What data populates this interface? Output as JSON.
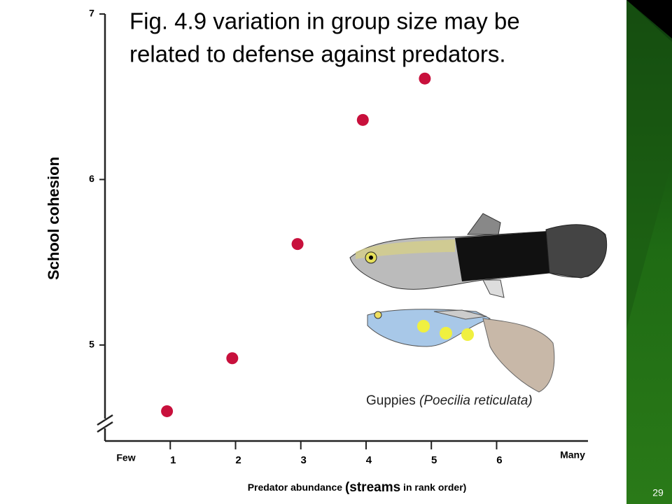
{
  "chart_data": {
    "type": "scatter",
    "title": [
      "Fig. 4.9 variation in group size may be",
      "related to defense against predators."
    ],
    "y_label": "School cohesion",
    "x_label": [
      "Predator abundance ",
      "(streams",
      " in rank order)"
    ],
    "x_end_labels": [
      "Few",
      "Many"
    ],
    "caption": [
      "Guppies ",
      "(Poecilia reticulata)"
    ],
    "slide_number": "29",
    "x": [
      0.95,
      1.95,
      2.95,
      3.95,
      4.9
    ],
    "values": [
      4.6,
      4.92,
      5.61,
      6.36,
      6.61
    ],
    "color": "#c8103c",
    "xlim": [
      0,
      7.4
    ],
    "ylim": [
      4.42,
      7
    ],
    "xticks": [
      1,
      2,
      3,
      4,
      5,
      6
    ],
    "yticks": [
      5,
      6,
      7
    ]
  }
}
